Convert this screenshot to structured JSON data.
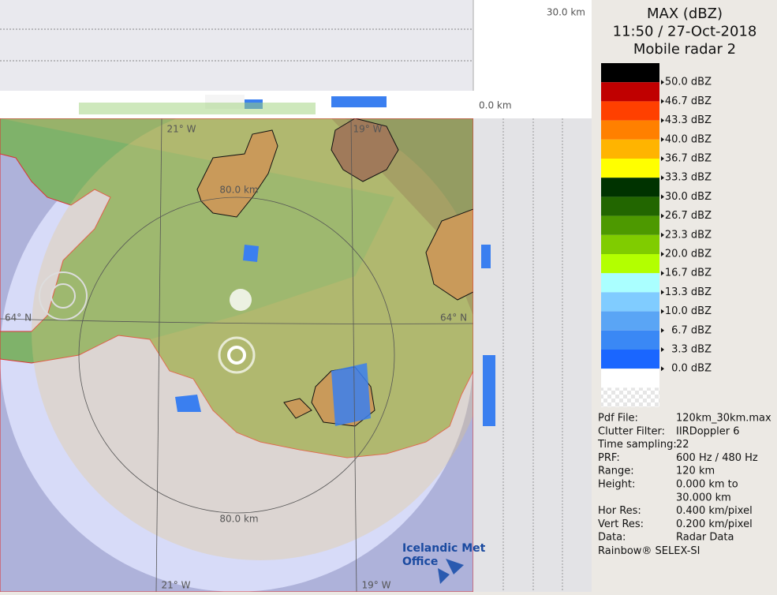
{
  "map": {
    "top_scale": "30.0 km",
    "zero_scale": "0.0 km",
    "lon_labels_top": [
      "21° W",
      "19° W"
    ],
    "lon_labels_bottom": [
      "21° W",
      "19° W"
    ],
    "lat_labels": [
      "64° N",
      "64° N"
    ],
    "range_labels": [
      "80.0 km",
      "80.0 km"
    ],
    "logo": [
      "Icelandic Met",
      "Office"
    ]
  },
  "legend": {
    "title": [
      "MAX (dBZ)",
      "11:50 / 27-Oct-2018",
      "Mobile radar 2"
    ],
    "colors": [
      "#000000",
      "#c00000",
      "#ff4000",
      "#ff8000",
      "#ffb400",
      "#ffff00",
      "#003300",
      "#226600",
      "#4d9900",
      "#80cc00",
      "#b3ff00",
      "#aaffff",
      "#80ccff",
      "#5aa5f5",
      "#3a88f5",
      "#1a66ff",
      "#ffffff"
    ],
    "labels": [
      "50.0 dBZ",
      "46.7 dBZ",
      "43.3 dBZ",
      "40.0 dBZ",
      "36.7 dBZ",
      "33.3 dBZ",
      "30.0 dBZ",
      "26.7 dBZ",
      "23.3 dBZ",
      "20.0 dBZ",
      "16.7 dBZ",
      "13.3 dBZ",
      "10.0 dBZ",
      "6.7 dBZ",
      "3.3 dBZ",
      "0.0 dBZ"
    ]
  },
  "info": {
    "rows": [
      {
        "label": "Pdf File:",
        "lines": [
          "120km_30km.max"
        ]
      },
      {
        "label": "Clutter Filter:",
        "lines": [
          "IIRDoppler 6"
        ]
      },
      {
        "label": "Time sampling:",
        "lines": [
          "22"
        ]
      },
      {
        "label": "PRF:",
        "lines": [
          "600 Hz / 480 Hz"
        ]
      },
      {
        "label": "Range:",
        "lines": [
          "120 km"
        ]
      },
      {
        "label": "Height:",
        "lines": [
          "0.000 km to",
          "30.000 km"
        ]
      },
      {
        "label": "Hor Res:",
        "lines": [
          "0.400 km/pixel"
        ]
      },
      {
        "label": "Vert Res:",
        "lines": [
          "0.200 km/pixel"
        ]
      },
      {
        "label": "Data:",
        "lines": [
          "Radar Data"
        ]
      }
    ],
    "footer": "Rainbow® SELEX-SI"
  }
}
